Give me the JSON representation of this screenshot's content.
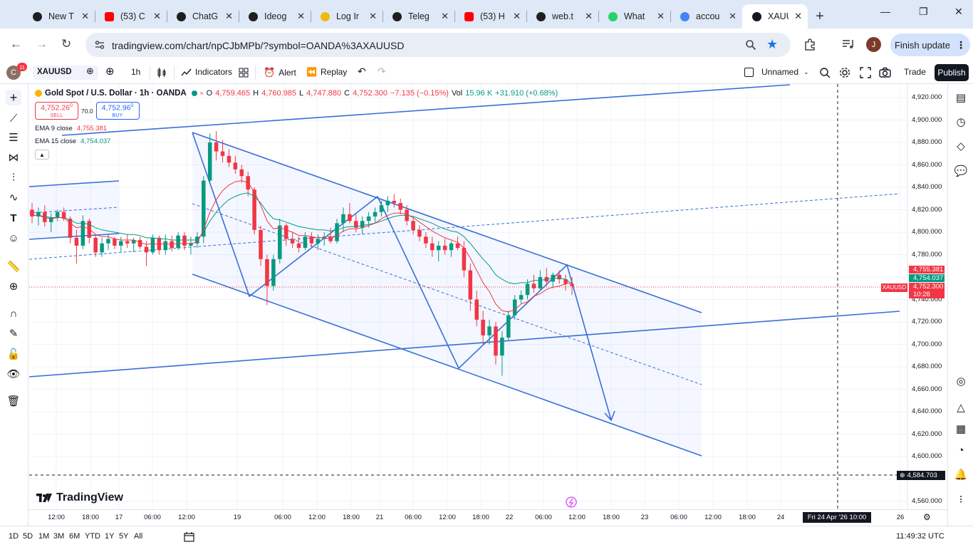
{
  "browser": {
    "tabs": [
      {
        "title": "New T",
        "icon": "github-icon",
        "color": "#1f1f1f"
      },
      {
        "title": "(53) C",
        "icon": "youtube-icon",
        "color": "#ff0000"
      },
      {
        "title": "ChatG",
        "icon": "chatgpt-icon",
        "color": "#1f1f1f"
      },
      {
        "title": "Ideog",
        "icon": "ideogram-icon",
        "color": "#1f1f1f"
      },
      {
        "title": "Log Ir",
        "icon": "binance-icon",
        "color": "#f0b90b"
      },
      {
        "title": "Teleg",
        "icon": "telegram-icon",
        "color": "#1f1f1f"
      },
      {
        "title": "(53) H",
        "icon": "youtube-icon",
        "color": "#ff0000"
      },
      {
        "title": "web.t",
        "icon": "globe-icon",
        "color": "#1f1f1f"
      },
      {
        "title": "What",
        "icon": "whatsapp-icon",
        "color": "#25d366"
      },
      {
        "title": "accou",
        "icon": "google-icon",
        "color": "#4285f4"
      },
      {
        "title": "XAUU",
        "icon": "tradingview-icon",
        "color": "#131722",
        "active": true
      }
    ],
    "url": "tradingview.com/chart/npCJbMPb/?symbol=OANDA%3AXAUUSD",
    "profile_initial": "J",
    "finish_update": "Finish update"
  },
  "toolbar": {
    "avatar_letter": "C",
    "notif_count": "11",
    "symbol": "XAUUSD",
    "interval": "1h",
    "indicators": "Indicators",
    "alert": "Alert",
    "replay": "Replay",
    "layout_name": "Unnamed",
    "trade": "Trade",
    "publish": "Publish"
  },
  "legend": {
    "title": "Gold Spot / U.S. Dollar · 1h · OANDA",
    "o": "O",
    "o_val": "4,759.465",
    "h": "H",
    "h_val": "4,760.985",
    "l": "L",
    "l_val": "4,747.880",
    "c": "C",
    "c_val": "4,752.300",
    "change": "−7.135 (−0.15%)",
    "vol_label": "Vol",
    "vol_val": "15.96 K",
    "vol_change": "+31.910 (+0.68%)",
    "sell_price": "4,752.26",
    "sell_sup": "0",
    "sell_label": "SELL",
    "spread": "70.0",
    "buy_price": "4,752.96",
    "buy_sup": "0",
    "buy_label": "BUY",
    "ema9_label": "EMA 9 close",
    "ema9_val": "4,755.381",
    "ema15_label": "EMA 15 close",
    "ema15_val": "4,754.037",
    "brand": "TradingView"
  },
  "price_axis": {
    "labels": [
      "4,920.000",
      "4,900.000",
      "4,880.000",
      "4,860.000",
      "4,840.000",
      "4,820.000",
      "4,800.000",
      "4,780.000",
      "4,740.000",
      "4,720.000",
      "4,700.000",
      "4,680.000",
      "4,660.000",
      "4,640.000",
      "4,620.000",
      "4,600.000",
      "4,560.000"
    ],
    "ema9_tag": "4,755.381",
    "ema15_tag": "4,754.037",
    "last_tag": "4,752.300",
    "countdown": "10:28",
    "symbol_tag": "XAUUSD",
    "crosshair_tag": "4,584.703",
    "ema9_color": "#f23645",
    "ema15_color": "#089981",
    "last_color": "#f23645"
  },
  "time_axis": {
    "labels": [
      "12:00",
      "18:00",
      "17",
      "06:00",
      "12:00",
      "19",
      "06:00",
      "12:00",
      "18:00",
      "21",
      "06:00",
      "12:00",
      "18:00",
      "22",
      "06:00",
      "12:00",
      "18:00",
      "23",
      "06:00",
      "12:00",
      "18:00",
      "24",
      "26"
    ],
    "crosshair_time": "Fri 24 Apr '26   10:00"
  },
  "bottom": {
    "ranges": [
      "1D",
      "5D",
      "1M",
      "3M",
      "6M",
      "YTD",
      "1Y",
      "5Y",
      "All"
    ],
    "clock": "11:49:32 UTC"
  },
  "chart_data": {
    "type": "candlestick",
    "symbol": "XAUUSD",
    "interval": "1h",
    "ylim": [
      4550,
      4930
    ],
    "colors": {
      "up": "#089981",
      "down": "#f23645",
      "drawing": "#3a6fd8"
    },
    "candles": [
      {
        "o": 4820,
        "h": 4826,
        "l": 4808,
        "c": 4814
      },
      {
        "o": 4814,
        "h": 4822,
        "l": 4806,
        "c": 4818
      },
      {
        "o": 4818,
        "h": 4824,
        "l": 4805,
        "c": 4809
      },
      {
        "o": 4809,
        "h": 4817,
        "l": 4800,
        "c": 4813
      },
      {
        "o": 4813,
        "h": 4820,
        "l": 4810,
        "c": 4818
      },
      {
        "o": 4818,
        "h": 4822,
        "l": 4810,
        "c": 4812
      },
      {
        "o": 4812,
        "h": 4814,
        "l": 4790,
        "c": 4795
      },
      {
        "o": 4795,
        "h": 4802,
        "l": 4772,
        "c": 4788
      },
      {
        "o": 4788,
        "h": 4815,
        "l": 4785,
        "c": 4810
      },
      {
        "o": 4810,
        "h": 4812,
        "l": 4790,
        "c": 4795
      },
      {
        "o": 4795,
        "h": 4798,
        "l": 4778,
        "c": 4782
      },
      {
        "o": 4782,
        "h": 4795,
        "l": 4778,
        "c": 4790
      },
      {
        "o": 4790,
        "h": 4798,
        "l": 4784,
        "c": 4794
      },
      {
        "o": 4794,
        "h": 4796,
        "l": 4785,
        "c": 4788
      },
      {
        "o": 4788,
        "h": 4796,
        "l": 4782,
        "c": 4792
      },
      {
        "o": 4792,
        "h": 4798,
        "l": 4786,
        "c": 4790
      },
      {
        "o": 4790,
        "h": 4795,
        "l": 4782,
        "c": 4793
      },
      {
        "o": 4793,
        "h": 4796,
        "l": 4785,
        "c": 4787
      },
      {
        "o": 4787,
        "h": 4792,
        "l": 4770,
        "c": 4782
      },
      {
        "o": 4782,
        "h": 4798,
        "l": 4780,
        "c": 4795
      },
      {
        "o": 4795,
        "h": 4797,
        "l": 4780,
        "c": 4784
      },
      {
        "o": 4784,
        "h": 4798,
        "l": 4780,
        "c": 4792
      },
      {
        "o": 4792,
        "h": 4797,
        "l": 4783,
        "c": 4786
      },
      {
        "o": 4786,
        "h": 4800,
        "l": 4784,
        "c": 4797
      },
      {
        "o": 4797,
        "h": 4800,
        "l": 4784,
        "c": 4788
      },
      {
        "o": 4788,
        "h": 4796,
        "l": 4780,
        "c": 4790
      },
      {
        "o": 4790,
        "h": 4800,
        "l": 4786,
        "c": 4796
      },
      {
        "o": 4796,
        "h": 4850,
        "l": 4790,
        "c": 4846
      },
      {
        "o": 4846,
        "h": 4888,
        "l": 4844,
        "c": 4880
      },
      {
        "o": 4880,
        "h": 4890,
        "l": 4864,
        "c": 4872
      },
      {
        "o": 4872,
        "h": 4882,
        "l": 4862,
        "c": 4868
      },
      {
        "o": 4868,
        "h": 4874,
        "l": 4858,
        "c": 4862
      },
      {
        "o": 4862,
        "h": 4868,
        "l": 4852,
        "c": 4856
      },
      {
        "o": 4856,
        "h": 4860,
        "l": 4844,
        "c": 4850
      },
      {
        "o": 4850,
        "h": 4854,
        "l": 4832,
        "c": 4838
      },
      {
        "o": 4838,
        "h": 4840,
        "l": 4798,
        "c": 4802
      },
      {
        "o": 4802,
        "h": 4806,
        "l": 4770,
        "c": 4776
      },
      {
        "o": 4776,
        "h": 4780,
        "l": 4735,
        "c": 4752
      },
      {
        "o": 4752,
        "h": 4780,
        "l": 4748,
        "c": 4776
      },
      {
        "o": 4776,
        "h": 4812,
        "l": 4772,
        "c": 4806
      },
      {
        "o": 4806,
        "h": 4808,
        "l": 4788,
        "c": 4794
      },
      {
        "o": 4794,
        "h": 4800,
        "l": 4786,
        "c": 4790
      },
      {
        "o": 4790,
        "h": 4796,
        "l": 4782,
        "c": 4786
      },
      {
        "o": 4786,
        "h": 4800,
        "l": 4784,
        "c": 4796
      },
      {
        "o": 4796,
        "h": 4800,
        "l": 4786,
        "c": 4790
      },
      {
        "o": 4790,
        "h": 4798,
        "l": 4784,
        "c": 4794
      },
      {
        "o": 4794,
        "h": 4800,
        "l": 4788,
        "c": 4796
      },
      {
        "o": 4796,
        "h": 4804,
        "l": 4790,
        "c": 4792
      },
      {
        "o": 4792,
        "h": 4812,
        "l": 4790,
        "c": 4808
      },
      {
        "o": 4808,
        "h": 4822,
        "l": 4800,
        "c": 4816
      },
      {
        "o": 4816,
        "h": 4826,
        "l": 4808,
        "c": 4810
      },
      {
        "o": 4810,
        "h": 4816,
        "l": 4800,
        "c": 4804
      },
      {
        "o": 4804,
        "h": 4814,
        "l": 4798,
        "c": 4810
      },
      {
        "o": 4810,
        "h": 4818,
        "l": 4804,
        "c": 4814
      },
      {
        "o": 4814,
        "h": 4822,
        "l": 4808,
        "c": 4818
      },
      {
        "o": 4818,
        "h": 4828,
        "l": 4814,
        "c": 4824
      },
      {
        "o": 4824,
        "h": 4832,
        "l": 4818,
        "c": 4828
      },
      {
        "o": 4828,
        "h": 4834,
        "l": 4822,
        "c": 4826
      },
      {
        "o": 4826,
        "h": 4830,
        "l": 4816,
        "c": 4820
      },
      {
        "o": 4820,
        "h": 4824,
        "l": 4806,
        "c": 4810
      },
      {
        "o": 4810,
        "h": 4814,
        "l": 4798,
        "c": 4802
      },
      {
        "o": 4802,
        "h": 4806,
        "l": 4792,
        "c": 4796
      },
      {
        "o": 4796,
        "h": 4800,
        "l": 4786,
        "c": 4790
      },
      {
        "o": 4790,
        "h": 4796,
        "l": 4778,
        "c": 4784
      },
      {
        "o": 4784,
        "h": 4792,
        "l": 4774,
        "c": 4788
      },
      {
        "o": 4788,
        "h": 4794,
        "l": 4780,
        "c": 4784
      },
      {
        "o": 4784,
        "h": 4792,
        "l": 4778,
        "c": 4790
      },
      {
        "o": 4790,
        "h": 4796,
        "l": 4784,
        "c": 4786
      },
      {
        "o": 4786,
        "h": 4792,
        "l": 4760,
        "c": 4766
      },
      {
        "o": 4766,
        "h": 4772,
        "l": 4730,
        "c": 4740
      },
      {
        "o": 4740,
        "h": 4748,
        "l": 4716,
        "c": 4722
      },
      {
        "o": 4722,
        "h": 4730,
        "l": 4700,
        "c": 4708
      },
      {
        "o": 4708,
        "h": 4722,
        "l": 4700,
        "c": 4716
      },
      {
        "o": 4716,
        "h": 4720,
        "l": 4682,
        "c": 4690
      },
      {
        "o": 4690,
        "h": 4712,
        "l": 4672,
        "c": 4706
      },
      {
        "o": 4706,
        "h": 4730,
        "l": 4704,
        "c": 4726
      },
      {
        "o": 4726,
        "h": 4744,
        "l": 4722,
        "c": 4740
      },
      {
        "o": 4740,
        "h": 4748,
        "l": 4736,
        "c": 4744
      },
      {
        "o": 4744,
        "h": 4758,
        "l": 4740,
        "c": 4754
      },
      {
        "o": 4754,
        "h": 4762,
        "l": 4746,
        "c": 4750
      },
      {
        "o": 4750,
        "h": 4766,
        "l": 4748,
        "c": 4760
      },
      {
        "o": 4760,
        "h": 4768,
        "l": 4752,
        "c": 4756
      },
      {
        "o": 4756,
        "h": 4764,
        "l": 4750,
        "c": 4762
      },
      {
        "o": 4762,
        "h": 4766,
        "l": 4754,
        "c": 4758
      },
      {
        "o": 4758,
        "h": 4762,
        "l": 4748,
        "c": 4754
      },
      {
        "o": 4754,
        "h": 4760,
        "l": 4744,
        "c": 4752
      }
    ],
    "ema9": [
      4815,
      4815,
      4813,
      4812,
      4813,
      4813,
      4808,
      4804,
      4805,
      4803,
      4798,
      4796,
      4796,
      4794,
      4793,
      4793,
      4793,
      4791,
      4789,
      4790,
      4789,
      4790,
      4789,
      4790,
      4790,
      4790,
      4791,
      4802,
      4818,
      4829,
      4837,
      4842,
      4845,
      4846,
      4844,
      4836,
      4824,
      4810,
      4803,
      4804,
      4802,
      4800,
      4797,
      4797,
      4796,
      4795,
      4795,
      4794,
      4797,
      4801,
      4803,
      4803,
      4804,
      4806,
      4808,
      4812,
      4815,
      4817,
      4817,
      4816,
      4813,
      4809,
      4805,
      4801,
      4798,
      4795,
      4793,
      4791,
      4786,
      4777,
      4766,
      4755,
      4747,
      4736,
      4730,
      4729,
      4731,
      4736,
      4738,
      4743,
      4745,
      4749,
      4751,
      4752,
      4754,
      4755
    ],
    "ema15": [
      4815,
      4815,
      4814,
      4813,
      4813,
      4813,
      4811,
      4808,
      4808,
      4807,
      4804,
      4802,
      4801,
      4800,
      4799,
      4798,
      4798,
      4797,
      4795,
      4795,
      4794,
      4794,
      4793,
      4793,
      4793,
      4793,
      4793,
      4800,
      4810,
      4818,
      4824,
      4829,
      4832,
      4834,
      4835,
      4832,
      4826,
      4818,
      4812,
      4811,
      4809,
      4807,
      4805,
      4804,
      4803,
      4802,
      4802,
      4801,
      4802,
      4804,
      4805,
      4805,
      4806,
      4807,
      4808,
      4810,
      4812,
      4814,
      4815,
      4815,
      4814,
      4812,
      4810,
      4808,
      4805,
      4803,
      4801,
      4800,
      4796,
      4790,
      4783,
      4776,
      4770,
      4762,
      4758,
      4755,
      4754,
      4755,
      4755,
      4757,
      4757,
      4758,
      4759,
      4759,
      4758,
      4754
    ]
  }
}
